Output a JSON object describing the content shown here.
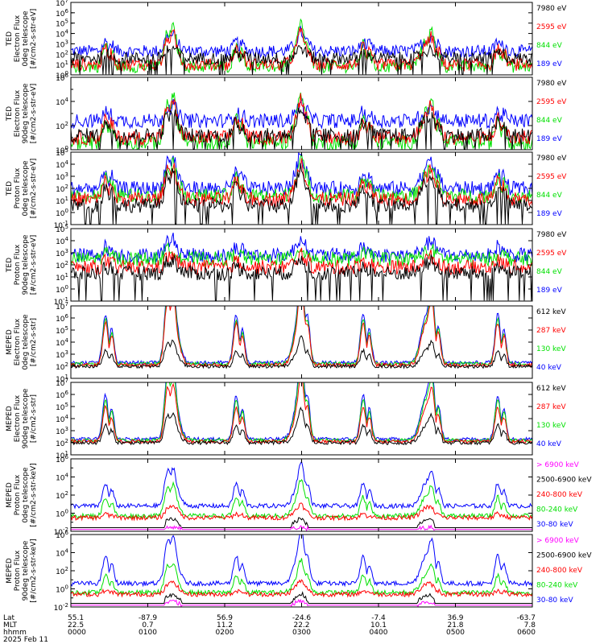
{
  "colors": {
    "black": "#000000",
    "red": "#ff0000",
    "green": "#00e000",
    "blue": "#0000ff",
    "magenta": "#ff00ff"
  },
  "chart_data": [
    {
      "type": "line",
      "ylabel": [
        "TED",
        "Electron Flux",
        "0deg telescope",
        "[#/cm2-s-str-eV]"
      ],
      "yscale": "log",
      "ylim": [
        1,
        10000000
      ],
      "y_ticks": [
        "10^0",
        "10^1",
        "10^2",
        "10^3",
        "10^4",
        "10^5",
        "10^6",
        "10^7"
      ],
      "legend": [
        {
          "label": "7980 eV",
          "color": "black"
        },
        {
          "label": "2595 eV",
          "color": "red"
        },
        {
          "label": "844 eV",
          "color": "green"
        },
        {
          "label": "189 eV",
          "color": "blue"
        }
      ],
      "levels": {
        "base": [
          1.6,
          1.0,
          0.8,
          2.3
        ],
        "peak": [
          2.2,
          2.8,
          3.1,
          3.3
        ]
      }
    },
    {
      "type": "line",
      "ylabel": [
        "TED",
        "Electron Flux",
        "90deg telescope",
        "[#/cm2-s-str-eV]"
      ],
      "yscale": "log",
      "ylim": [
        1,
        1000000
      ],
      "y_ticks": [
        "10^0",
        "10^2",
        "10^4",
        "10^6"
      ],
      "legend": [
        {
          "label": "7980 eV",
          "color": "black"
        },
        {
          "label": "2595 eV",
          "color": "red"
        },
        {
          "label": "844 eV",
          "color": "green"
        },
        {
          "label": "189 eV",
          "color": "blue"
        }
      ],
      "levels": {
        "base": [
          1.2,
          1.0,
          0.6,
          2.4
        ],
        "peak": [
          2.4,
          2.8,
          2.9,
          3.2
        ]
      }
    },
    {
      "type": "line",
      "ylabel": [
        "TED",
        "Proton Flux",
        "0deg telescope",
        "[#/cm2-s-str-eV]"
      ],
      "yscale": "log",
      "ylim": [
        0.1,
        100000
      ],
      "y_ticks": [
        "10^-1",
        "10^0",
        "10^1",
        "10^2",
        "10^3",
        "10^4",
        "10^5"
      ],
      "legend": [
        {
          "label": "7980 eV",
          "color": "black"
        },
        {
          "label": "2595 eV",
          "color": "red"
        },
        {
          "label": "844 eV",
          "color": "green"
        },
        {
          "label": "189 eV",
          "color": "blue"
        }
      ],
      "levels": {
        "base": [
          0.6,
          1.1,
          1.4,
          2.0
        ],
        "peak": [
          2.4,
          2.8,
          3.1,
          3.6
        ]
      }
    },
    {
      "type": "line",
      "ylabel": [
        "TED",
        "Proton Flux",
        "90deg telescope",
        "[#/cm2-s-str-eV]"
      ],
      "yscale": "log",
      "ylim": [
        0.1,
        100000
      ],
      "y_ticks": [
        "10^-1",
        "10^0",
        "10^1",
        "10^2",
        "10^3",
        "10^4",
        "10^5"
      ],
      "legend": [
        {
          "label": "7980 eV",
          "color": "black"
        },
        {
          "label": "2595 eV",
          "color": "red"
        },
        {
          "label": "844 eV",
          "color": "green"
        },
        {
          "label": "189 eV",
          "color": "blue"
        }
      ],
      "levels": {
        "base": [
          1.3,
          1.8,
          2.5,
          2.8
        ],
        "peak": [
          2.0,
          2.4,
          3.0,
          3.6
        ]
      }
    },
    {
      "type": "line",
      "ylabel": [
        "MEPED",
        "Electron Flux",
        "0deg telescope",
        "[#/cm2-s-str]"
      ],
      "yscale": "log",
      "ylim": [
        10,
        10000000
      ],
      "y_ticks": [
        "10^1",
        "10^2",
        "10^3",
        "10^4",
        "10^5",
        "10^6",
        "10^7"
      ],
      "legend": [
        {
          "label": "612 keV",
          "color": "black"
        },
        {
          "label": "287 keV",
          "color": "red"
        },
        {
          "label": "130 keV",
          "color": "green"
        },
        {
          "label": "40 keV",
          "color": "blue"
        }
      ],
      "levels": {
        "base": [
          2.0,
          2.1,
          2.2,
          2.3
        ],
        "peak": [
          3.3,
          5.6,
          5.9,
          6.3
        ]
      }
    },
    {
      "type": "line",
      "ylabel": [
        "MEPED",
        "Electron Flux",
        "90deg telescope",
        "[#/cm2-s-str]"
      ],
      "yscale": "log",
      "ylim": [
        10,
        10000000
      ],
      "y_ticks": [
        "10^1",
        "10^2",
        "10^3",
        "10^4",
        "10^5",
        "10^6",
        "10^7"
      ],
      "legend": [
        {
          "label": "612 keV",
          "color": "black"
        },
        {
          "label": "287 keV",
          "color": "red"
        },
        {
          "label": "130 keV",
          "color": "green"
        },
        {
          "label": "40 keV",
          "color": "blue"
        }
      ],
      "levels": {
        "base": [
          2.0,
          2.1,
          2.2,
          2.3
        ],
        "peak": [
          3.5,
          5.0,
          5.6,
          6.0
        ]
      }
    },
    {
      "type": "line",
      "ylabel": [
        "MEPED",
        "Proton Flux",
        "0deg telescope",
        "[#/cm2-s-str-keV]"
      ],
      "yscale": "log",
      "ylim": [
        0.01,
        1000000
      ],
      "y_ticks": [
        "10^-2",
        "10^0",
        "10^2",
        "10^4",
        "10^6"
      ],
      "legend": [
        {
          "label": "> 6900 keV",
          "color": "magenta"
        },
        {
          "label": "2500-6900 keV",
          "color": "black"
        },
        {
          "label": "240-800 keV",
          "color": "red"
        },
        {
          "label": "80-240 keV",
          "color": "green"
        },
        {
          "label": "30-80 keV",
          "color": "blue"
        }
      ],
      "levels": {
        "base": [
          -1.8,
          -1.6,
          -0.5,
          -0.3,
          0.8
        ],
        "peak": [
          -1.6,
          -0.8,
          0.6,
          1.8,
          3.3
        ]
      }
    },
    {
      "type": "line",
      "ylabel": [
        "MEPED",
        "Proton Flux",
        "90deg telescope",
        "[#/cm2-s-str-keV]"
      ],
      "yscale": "log",
      "ylim": [
        0.01,
        1000000
      ],
      "y_ticks": [
        "10^-2",
        "10^0",
        "10^2",
        "10^4",
        "10^6"
      ],
      "legend": [
        {
          "label": "> 6900 keV",
          "color": "magenta"
        },
        {
          "label": "2500-6900 keV",
          "color": "black"
        },
        {
          "label": "240-800 keV",
          "color": "red"
        },
        {
          "label": "80-240 keV",
          "color": "green"
        },
        {
          "label": "30-80 keV",
          "color": "blue"
        }
      ],
      "levels": {
        "base": [
          -1.8,
          -1.6,
          -0.6,
          -0.4,
          0.6
        ],
        "peak": [
          -1.5,
          -0.8,
          0.5,
          1.5,
          3.7
        ]
      }
    }
  ],
  "x_axis": {
    "range_hhmm": [
      "0000",
      "0600"
    ],
    "row_labels": [
      "Lat",
      "MLT",
      "hhmm"
    ],
    "ticks": [
      {
        "lat": "55.1",
        "mlt": "22.5",
        "hhmm": "0000"
      },
      {
        "lat": "-87.9",
        "mlt": "0.7",
        "hhmm": "0100"
      },
      {
        "lat": "56.9",
        "mlt": "11.2",
        "hhmm": "0200"
      },
      {
        "lat": "-24.6",
        "mlt": "22.2",
        "hhmm": "0300"
      },
      {
        "lat": "-7.4",
        "mlt": "10.1",
        "hhmm": "0400"
      },
      {
        "lat": "36.9",
        "mlt": "21.8",
        "hhmm": "0500"
      },
      {
        "lat": "-63.7",
        "mlt": "7.8",
        "hhmm": "0600"
      }
    ],
    "date": "2025 Feb 11"
  },
  "events": {
    "passes_hours": [
      0.45,
      1.25,
      2.15,
      3.0,
      3.8,
      4.7,
      5.55
    ],
    "belt_domes_hours": [
      1.33,
      2.97,
      4.62
    ]
  }
}
